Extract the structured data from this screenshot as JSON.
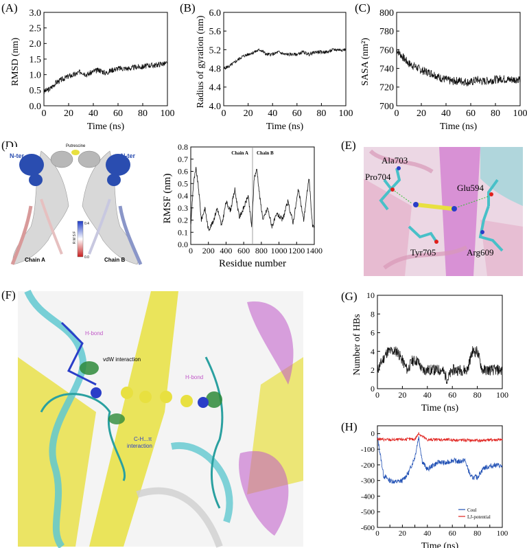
{
  "panels": {
    "A": "(A)",
    "B": "(B)",
    "C": "(C)",
    "D": "(D)",
    "E": "(E)",
    "F": "(F)",
    "G": "(G)",
    "H": "(H)"
  },
  "colors": {
    "trace": "#111111",
    "coul": "#1f4fb4",
    "lj": "#e0201c",
    "helix_blue": "#2a4db0",
    "pink": "#e8b0c8",
    "magenta": "#c058c8",
    "cyan": "#48c0c8",
    "yellow": "#e8e040",
    "oxygen": "#e0201c",
    "nitrogen": "#2a3ec8"
  },
  "panel_D_labels": {
    "nter_left": "N-ter",
    "nter_right": "N-ter",
    "putrescine": "Putrescine",
    "chain_a": "Chain A",
    "chain_b": "Chain B",
    "colorbar_label": "R M S F",
    "colorbar_max": "0.4",
    "colorbar_min": "0.0"
  },
  "panel_E_labels": {
    "ala703": "Ala703",
    "pro704": "Pro704",
    "glu594": "Glu594",
    "tyr705": "Tyr705",
    "arg609": "Arg609"
  },
  "panel_F_labels": {
    "hbond1": "H-bond",
    "vdw": "vdW interaction",
    "hbond2": "H-bond",
    "ch_pi_1": "C-H...π",
    "ch_pi_2": "interaction"
  },
  "chart_data": [
    {
      "id": "A",
      "type": "line",
      "xlabel": "Time (ns)",
      "ylabel": "RMSD (nm)",
      "xlim": [
        0,
        100
      ],
      "ylim": [
        0,
        3.0
      ],
      "xticks": [
        0,
        20,
        40,
        60,
        80,
        100
      ],
      "yticks": [
        0.0,
        0.5,
        1.0,
        1.5,
        2.0,
        2.5,
        3.0
      ],
      "ytick_labels": [
        "0.0",
        "0.5",
        "1.0",
        "1.5",
        "2.0",
        "2.5",
        "3.0"
      ],
      "series": [
        {
          "x": [
            0,
            5,
            10,
            15,
            20,
            25,
            30,
            35,
            40,
            45,
            50,
            55,
            60,
            65,
            70,
            75,
            80,
            85,
            90,
            95,
            100
          ],
          "values": [
            0.45,
            0.55,
            0.75,
            0.85,
            0.95,
            1.0,
            1.1,
            1.0,
            1.1,
            1.15,
            1.05,
            1.15,
            1.2,
            1.2,
            1.2,
            1.25,
            1.25,
            1.3,
            1.3,
            1.35,
            1.35
          ]
        }
      ]
    },
    {
      "id": "B",
      "type": "line",
      "xlabel": "Time (ns)",
      "ylabel": "Radius of gyration (nm)",
      "xlim": [
        0,
        100
      ],
      "ylim": [
        4.0,
        6.0
      ],
      "xticks": [
        0,
        20,
        40,
        60,
        80,
        100
      ],
      "yticks": [
        4.0,
        4.4,
        4.8,
        5.2,
        5.6,
        6.0
      ],
      "ytick_labels": [
        "4.0",
        "4.4",
        "4.8",
        "5.2",
        "5.6",
        "6.0"
      ],
      "series": [
        {
          "x": [
            0,
            5,
            10,
            15,
            20,
            25,
            30,
            35,
            40,
            45,
            50,
            55,
            60,
            65,
            70,
            75,
            80,
            85,
            90,
            95,
            100
          ],
          "values": [
            4.8,
            4.85,
            4.95,
            5.05,
            5.1,
            5.15,
            5.2,
            5.1,
            5.1,
            5.15,
            5.1,
            5.1,
            5.1,
            5.15,
            5.1,
            5.15,
            5.15,
            5.15,
            5.2,
            5.2,
            5.2
          ]
        }
      ]
    },
    {
      "id": "C",
      "type": "line",
      "xlabel": "Time (ns)",
      "ylabel": "SASA (nm²)",
      "xlim": [
        0,
        100
      ],
      "ylim": [
        700,
        800
      ],
      "xticks": [
        0,
        20,
        40,
        60,
        80,
        100
      ],
      "yticks": [
        700,
        720,
        740,
        760,
        780,
        800
      ],
      "ytick_labels": [
        "700",
        "720",
        "740",
        "760",
        "780",
        "800"
      ],
      "series": [
        {
          "x": [
            0,
            5,
            10,
            15,
            20,
            25,
            30,
            35,
            40,
            45,
            50,
            55,
            60,
            65,
            70,
            75,
            80,
            85,
            90,
            95,
            100
          ],
          "values": [
            760,
            752,
            745,
            742,
            738,
            736,
            734,
            730,
            728,
            726,
            727,
            726,
            725,
            728,
            726,
            727,
            728,
            729,
            728,
            728,
            729
          ]
        }
      ]
    },
    {
      "id": "D",
      "type": "line",
      "xlabel": "Residue number",
      "ylabel": "RMSF (nm)",
      "xlim": [
        0,
        1400
      ],
      "ylim": [
        0,
        0.8
      ],
      "xticks": [
        0,
        200,
        400,
        600,
        800,
        1000,
        1200,
        1400
      ],
      "yticks": [
        0.0,
        0.1,
        0.2,
        0.3,
        0.4,
        0.5,
        0.6,
        0.7,
        0.8
      ],
      "ytick_labels": [
        "0.0",
        "0.1",
        "0.2",
        "0.3",
        "0.4",
        "0.5",
        "0.6",
        "0.7",
        "0.8"
      ],
      "annotations": [
        "Chain A",
        "Chain B"
      ],
      "divider_x": 700,
      "series": [
        {
          "x": [
            0,
            30,
            60,
            90,
            120,
            160,
            200,
            250,
            300,
            350,
            400,
            450,
            500,
            550,
            600,
            650,
            690,
            720,
            750,
            780,
            820,
            870,
            920,
            980,
            1040,
            1100,
            1160,
            1220,
            1280,
            1340,
            1380
          ],
          "values": [
            0.15,
            0.5,
            0.62,
            0.45,
            0.2,
            0.3,
            0.12,
            0.18,
            0.3,
            0.15,
            0.35,
            0.28,
            0.45,
            0.22,
            0.3,
            0.4,
            0.15,
            0.55,
            0.62,
            0.4,
            0.2,
            0.3,
            0.15,
            0.25,
            0.2,
            0.35,
            0.18,
            0.45,
            0.2,
            0.55,
            0.15
          ]
        }
      ]
    },
    {
      "id": "G",
      "type": "line",
      "xlabel": "Time (ns)",
      "ylabel": "Number of HBs",
      "xlim": [
        0,
        100
      ],
      "ylim": [
        0,
        10
      ],
      "xticks": [
        0,
        20,
        40,
        60,
        80,
        100
      ],
      "yticks": [
        0,
        2,
        4,
        6,
        8,
        10
      ],
      "ytick_labels": [
        "0",
        "2",
        "4",
        "6",
        "8",
        "10"
      ],
      "series": [
        {
          "x": [
            0,
            4,
            8,
            12,
            16,
            20,
            24,
            28,
            32,
            36,
            40,
            44,
            48,
            52,
            56,
            60,
            64,
            68,
            72,
            76,
            80,
            84,
            88,
            92,
            96,
            100
          ],
          "values": [
            2,
            3,
            4,
            4,
            4,
            3,
            2,
            3,
            3,
            2,
            2,
            2,
            2,
            2,
            1,
            2,
            2,
            2,
            2,
            4,
            4,
            2,
            2,
            2,
            2,
            2
          ]
        }
      ]
    },
    {
      "id": "H",
      "type": "line",
      "xlabel": "Time (ns)",
      "ylabel": "",
      "xlim": [
        0,
        100
      ],
      "ylim": [
        -600,
        50
      ],
      "xticks": [
        0,
        10,
        20,
        30,
        40,
        50,
        60,
        70,
        80,
        90,
        100
      ],
      "yticks": [
        0,
        -100,
        -200,
        -300,
        -400,
        -500,
        -600
      ],
      "ytick_labels": [
        "0",
        "-100",
        "-200",
        "-300",
        "-400",
        "-500",
        "-600"
      ],
      "legend_placement": "bottom-right",
      "series": [
        {
          "name": "Coul",
          "x": [
            0,
            5,
            10,
            15,
            20,
            25,
            30,
            33,
            36,
            40,
            45,
            50,
            55,
            60,
            65,
            70,
            75,
            80,
            85,
            90,
            95,
            100
          ],
          "values": [
            -20,
            -270,
            -300,
            -310,
            -300,
            -250,
            -150,
            -20,
            -180,
            -230,
            -200,
            -180,
            -190,
            -170,
            -180,
            -170,
            -280,
            -280,
            -220,
            -210,
            -200,
            -210
          ]
        },
        {
          "name": "LJ-potential",
          "x": [
            0,
            10,
            20,
            30,
            33,
            40,
            50,
            60,
            70,
            80,
            90,
            100
          ],
          "values": [
            -35,
            -40,
            -38,
            -35,
            0,
            -40,
            -38,
            -40,
            -42,
            -45,
            -40,
            -40
          ]
        }
      ]
    }
  ]
}
